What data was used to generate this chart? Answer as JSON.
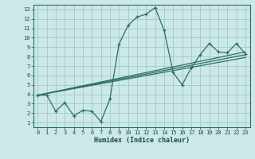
{
  "xlabel": "Humidex (Indice chaleur)",
  "background_color": "#cce8e8",
  "grid_color": "#aacccc",
  "line_color": "#2a6e68",
  "xlim": [
    -0.5,
    23.5
  ],
  "ylim": [
    0.5,
    13.5
  ],
  "xticks": [
    0,
    1,
    2,
    3,
    4,
    5,
    6,
    7,
    8,
    9,
    10,
    11,
    12,
    13,
    14,
    15,
    16,
    17,
    18,
    19,
    20,
    21,
    22,
    23
  ],
  "yticks": [
    1,
    2,
    3,
    4,
    5,
    6,
    7,
    8,
    9,
    10,
    11,
    12,
    13
  ],
  "line1_x": [
    0,
    1,
    2,
    3,
    4,
    5,
    6,
    7,
    8,
    9,
    10,
    11,
    12,
    13,
    14,
    15,
    16,
    17,
    18,
    19,
    20,
    21,
    22,
    23
  ],
  "line1_y": [
    3.9,
    3.9,
    2.2,
    3.1,
    1.7,
    2.3,
    2.2,
    1.1,
    3.5,
    9.3,
    11.3,
    12.2,
    12.5,
    13.2,
    10.8,
    6.3,
    5.0,
    6.8,
    8.2,
    9.4,
    8.5,
    8.4,
    9.4,
    8.3
  ],
  "line2_x": [
    0,
    23
  ],
  "line2_y": [
    3.9,
    8.5
  ],
  "line3_x": [
    0,
    23
  ],
  "line3_y": [
    3.9,
    7.9
  ],
  "line4_x": [
    0,
    23
  ],
  "line4_y": [
    3.9,
    8.2
  ]
}
